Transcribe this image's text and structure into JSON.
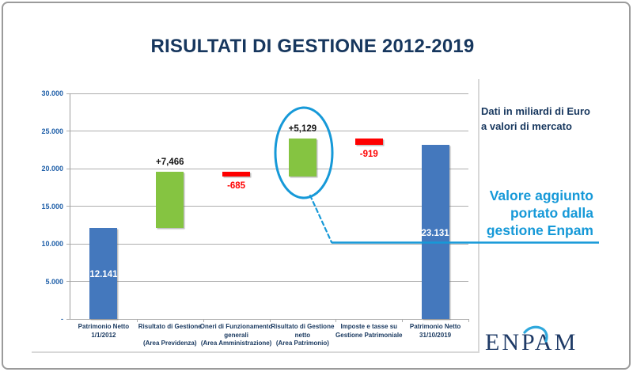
{
  "slide": {
    "title": "RISULTATI DI GESTIONE 2012-2019"
  },
  "notes": {
    "units": [
      "Dati in miliardi di Euro",
      "a valori di mercato"
    ],
    "callout": [
      "Valore aggiunto",
      "portato dalla",
      "gestione Enpam"
    ]
  },
  "logo": {
    "text": "ENPAM"
  },
  "chart_data": {
    "type": "bar",
    "subtype": "waterfall",
    "title": "RISULTATI DI GESTIONE 2012-2019",
    "units_note": "Dati in miliardi di Euro a valori di mercato",
    "ylim": [
      0,
      30000
    ],
    "ytick_values": [
      30000,
      25000,
      20000,
      15000,
      10000,
      5000,
      0
    ],
    "ytick_labels": [
      "30.000",
      "25.000",
      "20.000",
      "15.000",
      "10.000",
      "5.000",
      "-"
    ],
    "grid": true,
    "legend": "none",
    "categories": [
      [
        "Patrimonio Netto",
        "1/1/2012"
      ],
      [
        "Risultato di Gestione",
        "",
        "(Area Previdenza)"
      ],
      [
        "Oneri di Funzionamento",
        "generali",
        "(Area Amministrazione)"
      ],
      [
        "Risultato di Gestione",
        "netto",
        "(Area Patrimonio)"
      ],
      [
        "Imposte e tasse su",
        "Gestione Patrimoniale"
      ],
      [
        "Patrimonio Netto",
        "31/10/2019"
      ]
    ],
    "bars": [
      {
        "kind": "total",
        "base": 0,
        "value": 12141,
        "label": "12.141"
      },
      {
        "kind": "increase",
        "base": 12141,
        "value": 7466,
        "label": "+7,466"
      },
      {
        "kind": "decrease",
        "base": 19607,
        "value": -685,
        "label": "-685"
      },
      {
        "kind": "increase",
        "base": 18922,
        "value": 5129,
        "label": "+5,129",
        "highlighted": true
      },
      {
        "kind": "decrease",
        "base": 24051,
        "value": -919,
        "label": "-919"
      },
      {
        "kind": "total",
        "base": 0,
        "value": 23131,
        "label": "23.131"
      }
    ],
    "colors": {
      "total": "#4478BD",
      "increase": "#85C441",
      "decrease": "#FE0000",
      "highlight": "#1699D8",
      "grid": "#ADADAD",
      "axis_label": "#1F5FA8",
      "category_label": "#17375E",
      "title": "#17375E"
    }
  }
}
